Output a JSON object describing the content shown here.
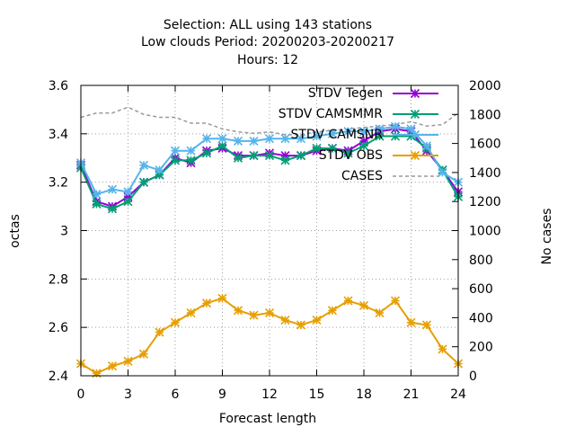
{
  "chart_data": {
    "type": "line",
    "title_lines": [
      "Selection: ALL using   143 stations",
      "Low clouds   Period: 20200203-20200217",
      "Hours:  12"
    ],
    "xlabel": "Forecast length",
    "ylabel": "octas",
    "y2label": "No cases",
    "xlim": [
      0,
      24
    ],
    "ylim": [
      2.4,
      3.6
    ],
    "y2lim": [
      0,
      2000
    ],
    "xticks": [
      0,
      3,
      6,
      9,
      12,
      15,
      18,
      21,
      24
    ],
    "yticks": [
      "2.4",
      "2.6",
      "2.8",
      "3",
      "3.2",
      "3.4",
      "3.6"
    ],
    "y2ticks": [
      "0",
      "200",
      "400",
      "600",
      "800",
      "1000",
      "1200",
      "1400",
      "1600",
      "1800",
      "2000"
    ],
    "grid": true,
    "legend_position": "top-right",
    "x": [
      0,
      1,
      2,
      3,
      4,
      5,
      6,
      7,
      8,
      9,
      10,
      11,
      12,
      13,
      14,
      15,
      16,
      17,
      18,
      19,
      20,
      21,
      22,
      23,
      24
    ],
    "series": [
      {
        "name": "STDV Tegen",
        "color": "#9400d3",
        "axis": "y",
        "values": [
          3.27,
          3.12,
          3.1,
          3.14,
          3.2,
          3.23,
          3.3,
          3.28,
          3.33,
          3.34,
          3.31,
          3.31,
          3.32,
          3.31,
          3.31,
          3.33,
          3.34,
          3.33,
          3.37,
          3.41,
          3.42,
          3.41,
          3.33,
          3.25,
          3.16
        ]
      },
      {
        "name": "STDV CAMSMMR",
        "color": "#009e73",
        "axis": "y",
        "values": [
          3.26,
          3.11,
          3.09,
          3.12,
          3.2,
          3.23,
          3.29,
          3.29,
          3.32,
          3.35,
          3.3,
          3.31,
          3.31,
          3.29,
          3.31,
          3.34,
          3.34,
          3.32,
          3.35,
          3.39,
          3.39,
          3.39,
          3.34,
          3.25,
          3.14
        ]
      },
      {
        "name": "STDV CAMSNR",
        "color": "#56b4e9",
        "axis": "y",
        "values": [
          3.28,
          3.15,
          3.17,
          3.16,
          3.27,
          3.25,
          3.33,
          3.33,
          3.38,
          3.38,
          3.37,
          3.37,
          3.38,
          3.38,
          3.38,
          3.39,
          3.4,
          3.41,
          3.41,
          3.42,
          3.43,
          3.42,
          3.35,
          3.24,
          3.2
        ]
      },
      {
        "name": "STDV OBS",
        "color": "#e69f00",
        "axis": "y",
        "values": [
          2.45,
          2.41,
          2.44,
          2.46,
          2.49,
          2.58,
          2.62,
          2.66,
          2.7,
          2.72,
          2.67,
          2.65,
          2.66,
          2.63,
          2.61,
          2.63,
          2.67,
          2.71,
          2.69,
          2.66,
          2.71,
          2.62,
          2.61,
          2.51,
          2.45
        ]
      },
      {
        "name": "CASES",
        "color": "#999999",
        "axis": "y2",
        "dashed": true,
        "values": [
          1780,
          1810,
          1810,
          1850,
          1800,
          1780,
          1780,
          1740,
          1740,
          1700,
          1680,
          1670,
          1680,
          1660,
          1660,
          1680,
          1690,
          1700,
          1710,
          1720,
          1730,
          1750,
          1720,
          1730,
          1810
        ]
      }
    ]
  }
}
